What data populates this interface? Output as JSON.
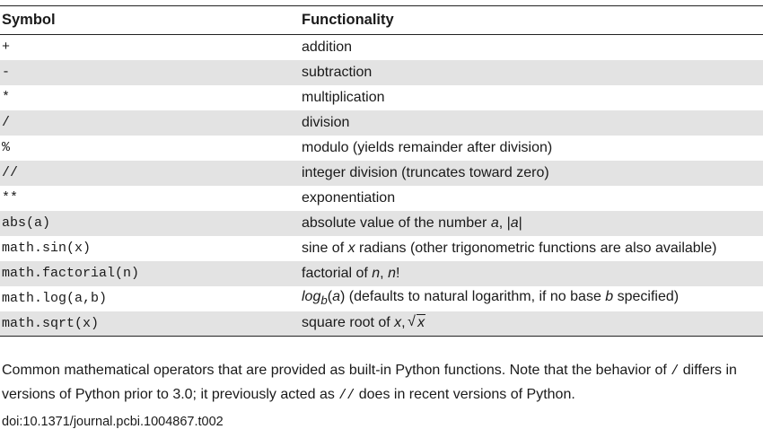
{
  "table": {
    "headers": {
      "symbol": "Symbol",
      "functionality": "Functionality"
    },
    "rows": [
      {
        "symbol": "+",
        "func": "addition"
      },
      {
        "symbol": "-",
        "func": "subtraction"
      },
      {
        "symbol": "*",
        "func": "multiplication"
      },
      {
        "symbol": "/",
        "func": "division"
      },
      {
        "symbol": "%",
        "func": "modulo (yields remainder after division)"
      },
      {
        "symbol": "//",
        "func": "integer division (truncates toward zero)"
      },
      {
        "symbol": "**",
        "func": "exponentiation"
      },
      {
        "symbol": "abs(a)",
        "func_parts": {
          "pre": "absolute value of the number ",
          "var1": "a",
          "mid": ", |",
          "var2": "a",
          "post": "|"
        }
      },
      {
        "symbol": "math.sin(x)",
        "func_parts": {
          "pre": "sine of ",
          "var1": "x",
          "post": " radians (other trigonometric functions are also available)"
        }
      },
      {
        "symbol": "math.factorial(n)",
        "func_parts": {
          "pre": "factorial of ",
          "var1": "n",
          "mid": ", ",
          "var2": "n",
          "post": "!"
        }
      },
      {
        "symbol": "math.log(a,b)",
        "func_parts": {
          "log": "log",
          "sub": "b",
          "open": "(",
          "var1": "a",
          "close": ")",
          "pre": " (defaults to natural logarithm, if no base ",
          "var2": "b",
          "post": " specified)"
        }
      },
      {
        "symbol": "math.sqrt(x)",
        "func_parts": {
          "pre": "square root of ",
          "var1": "x",
          "mid": ", ",
          "radicand": "x"
        }
      }
    ]
  },
  "caption": {
    "part1": "Common mathematical operators that are provided as built-in Python functions. Note that the behavior of ",
    "code1": "/",
    "part2": " differs in versions of Python prior to 3.0; it previously acted as ",
    "code2": "//",
    "part3": " does in recent versions of Python."
  },
  "doi": "doi:10.1371/journal.pcbi.1004867.t002"
}
